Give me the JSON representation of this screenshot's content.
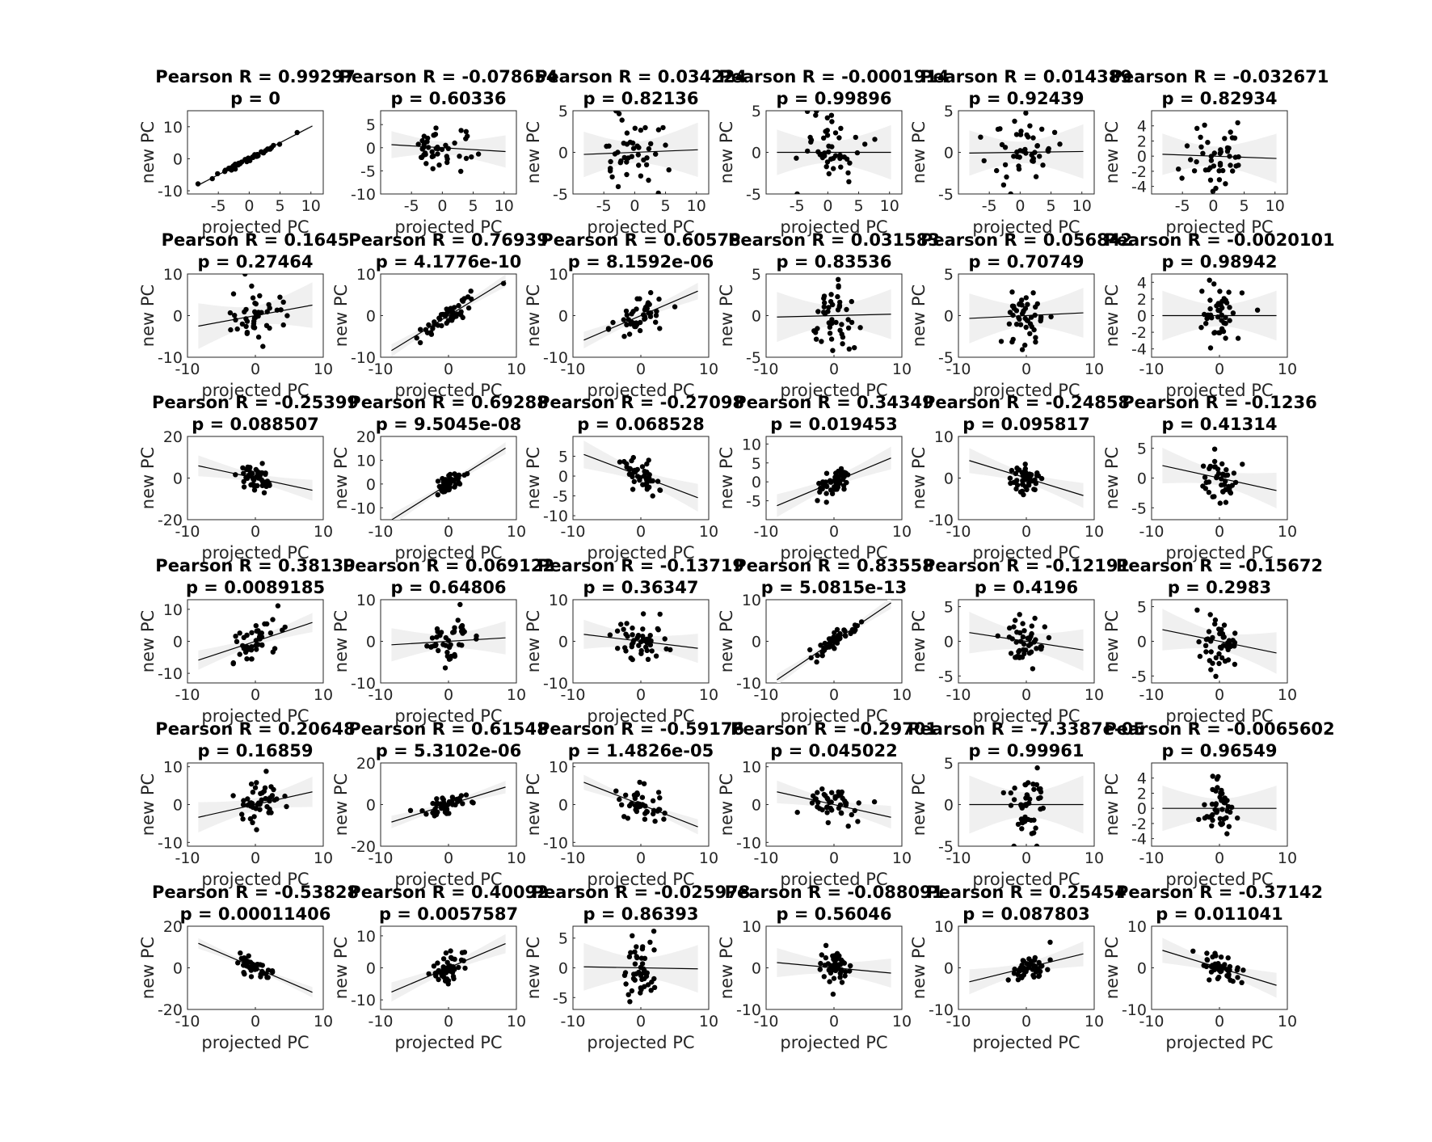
{
  "chart_data": [
    {
      "title": "Pearson R = 0.99297",
      "subtitle": "p = 0",
      "xlabel": "projected PC",
      "ylabel": "new PC",
      "xlim": [
        -10,
        12
      ],
      "ylim": [
        -11,
        15
      ],
      "xticks": [
        -5,
        0,
        5,
        10
      ],
      "yticks": [
        -10,
        0,
        10
      ],
      "slope": 1.0,
      "band_half": 0.5,
      "spread_x": 2.7,
      "noise": 0.4,
      "seed": 1
    },
    {
      "title": "Pearson R = -0.078654",
      "subtitle": "p = 0.60336",
      "xlabel": "projected PC",
      "ylabel": "",
      "xlim": [
        -10,
        12
      ],
      "ylim": [
        -10,
        8
      ],
      "xticks": [
        -5,
        0,
        5,
        10
      ],
      "yticks": [
        -10,
        -5,
        0,
        5
      ],
      "slope": -0.08,
      "band_half": 3.2,
      "spread_x": 2.7,
      "noise": 2.6,
      "seed": 2
    },
    {
      "title": "Pearson R = 0.034224",
      "subtitle": "p = 0.82136",
      "xlabel": "projected PC",
      "ylabel": "new PC",
      "xlim": [
        -10,
        12
      ],
      "ylim": [
        -5,
        5
      ],
      "xticks": [
        -5,
        0,
        5,
        10
      ],
      "yticks": [
        -5,
        0,
        5
      ],
      "slope": 0.03,
      "band_half": 3.0,
      "spread_x": 2.7,
      "noise": 2.3,
      "seed": 3
    },
    {
      "title": "Pearson R = -0.0001914",
      "subtitle": "p = 0.99896",
      "xlabel": "projected PC",
      "ylabel": "new PC",
      "xlim": [
        -10,
        12
      ],
      "ylim": [
        -5,
        5
      ],
      "xticks": [
        -5,
        0,
        5,
        10
      ],
      "yticks": [
        -5,
        0,
        5
      ],
      "slope": 0.0,
      "band_half": 3.0,
      "spread_x": 2.7,
      "noise": 2.3,
      "seed": 4
    },
    {
      "title": "Pearson R = 0.014389",
      "subtitle": "p = 0.92439",
      "xlabel": "projected PC",
      "ylabel": "new PC",
      "xlim": [
        -10,
        12
      ],
      "ylim": [
        -5,
        5
      ],
      "xticks": [
        -5,
        0,
        5,
        10
      ],
      "yticks": [
        -5,
        0,
        5
      ],
      "slope": 0.01,
      "band_half": 3.0,
      "spread_x": 2.7,
      "noise": 2.0,
      "seed": 5
    },
    {
      "title": "Pearson R = -0.032671",
      "subtitle": "p = 0.82934",
      "xlabel": "projected PC",
      "ylabel": "new PC",
      "xlim": [
        -10,
        12
      ],
      "ylim": [
        -5,
        6
      ],
      "xticks": [
        -5,
        0,
        5,
        10
      ],
      "yticks": [
        -4,
        -2,
        0,
        2,
        4
      ],
      "slope": -0.03,
      "band_half": 3.0,
      "spread_x": 2.7,
      "noise": 1.8,
      "seed": 6
    },
    {
      "title": "Pearson R = 0.1645",
      "subtitle": "p = 0.27464",
      "xlabel": "projected PC",
      "ylabel": "new PC",
      "xlim": [
        -10,
        10
      ],
      "ylim": [
        -10,
        10
      ],
      "xticks": [
        -10,
        0,
        10
      ],
      "yticks": [
        -10,
        0,
        10
      ],
      "slope": 0.3,
      "band_half": 5.5,
      "spread_x": 2.0,
      "noise": 3.0,
      "seed": 7
    },
    {
      "title": "Pearson R = 0.76939",
      "subtitle": "p = 4.1776e-10",
      "xlabel": "projected PC",
      "ylabel": "new PC",
      "xlim": [
        -10,
        10
      ],
      "ylim": [
        -10,
        10
      ],
      "xticks": [
        -10,
        0,
        10
      ],
      "yticks": [
        -10,
        0,
        10
      ],
      "slope": 1.0,
      "band_half": 1.5,
      "spread_x": 2.0,
      "noise": 1.3,
      "seed": 8
    },
    {
      "title": "Pearson R = 0.60578",
      "subtitle": "p = 8.1592e-06",
      "xlabel": "projected PC",
      "ylabel": "new PC",
      "xlim": [
        -10,
        10
      ],
      "ylim": [
        -10,
        10
      ],
      "xticks": [
        -10,
        0,
        10
      ],
      "yticks": [
        -10,
        0,
        10
      ],
      "slope": 0.7,
      "band_half": 2.0,
      "spread_x": 2.0,
      "noise": 1.8,
      "seed": 9
    },
    {
      "title": "Pearson R = 0.031583",
      "subtitle": "p = 0.83536",
      "xlabel": "projected PC",
      "ylabel": "new PC",
      "xlim": [
        -10,
        10
      ],
      "ylim": [
        -5,
        5
      ],
      "xticks": [
        -10,
        0,
        10
      ],
      "yticks": [
        -5,
        0,
        5
      ],
      "slope": 0.02,
      "band_half": 3.0,
      "spread_x": 1.6,
      "noise": 2.3,
      "seed": 10
    },
    {
      "title": "Pearson R = 0.056842",
      "subtitle": "p = 0.70749",
      "xlabel": "projected PC",
      "ylabel": "new PC",
      "xlim": [
        -10,
        10
      ],
      "ylim": [
        -5,
        5
      ],
      "xticks": [
        -10,
        0,
        10
      ],
      "yticks": [
        -5,
        0,
        5
      ],
      "slope": 0.04,
      "band_half": 3.0,
      "spread_x": 1.6,
      "noise": 2.0,
      "seed": 11
    },
    {
      "title": "Pearson R = -0.0020101",
      "subtitle": "p = 0.98942",
      "xlabel": "projected PC",
      "ylabel": "new PC",
      "xlim": [
        -10,
        10
      ],
      "ylim": [
        -5,
        5
      ],
      "xticks": [
        -10,
        0,
        10
      ],
      "yticks": [
        -4,
        -2,
        0,
        2,
        4
      ],
      "slope": 0.0,
      "band_half": 3.0,
      "spread_x": 1.6,
      "noise": 1.8,
      "seed": 12
    },
    {
      "title": "Pearson R = -0.25399",
      "subtitle": "p = 0.088507",
      "xlabel": "projected PC",
      "ylabel": "new PC",
      "xlim": [
        -10,
        10
      ],
      "ylim": [
        -20,
        20
      ],
      "xticks": [
        -10,
        0,
        10
      ],
      "yticks": [
        -20,
        0,
        20
      ],
      "slope": -0.7,
      "band_half": 5.0,
      "spread_x": 1.3,
      "noise": 3.0,
      "seed": 13
    },
    {
      "title": "Pearson R = 0.69288",
      "subtitle": "p = 9.5045e-08",
      "xlabel": "projected PC",
      "ylabel": "new PC",
      "xlim": [
        -10,
        10
      ],
      "ylim": [
        -15,
        20
      ],
      "xticks": [
        -10,
        0,
        10
      ],
      "yticks": [
        -10,
        0,
        10,
        20
      ],
      "slope": 1.8,
      "band_half": 2.5,
      "spread_x": 1.3,
      "noise": 1.8,
      "seed": 14
    },
    {
      "title": "Pearson R = -0.27098",
      "subtitle": "p = 0.068528",
      "xlabel": "projected PC",
      "ylabel": "new PC",
      "xlim": [
        -10,
        10
      ],
      "ylim": [
        -11,
        10
      ],
      "xticks": [
        -10,
        0,
        10
      ],
      "yticks": [
        -10,
        -5,
        0,
        5
      ],
      "slope": -0.65,
      "band_half": 3.5,
      "spread_x": 1.3,
      "noise": 2.0,
      "seed": 15
    },
    {
      "title": "Pearson R = 0.34349",
      "subtitle": "p = 0.019453",
      "xlabel": "projected PC",
      "ylabel": "new PC",
      "xlim": [
        -10,
        10
      ],
      "ylim": [
        -10,
        12
      ],
      "xticks": [
        -10,
        0,
        10
      ],
      "yticks": [
        -5,
        0,
        5,
        10
      ],
      "slope": 0.75,
      "band_half": 3.0,
      "spread_x": 1.3,
      "noise": 2.0,
      "seed": 16
    },
    {
      "title": "Pearson R = -0.24858",
      "subtitle": "p = 0.095817",
      "xlabel": "projected PC",
      "ylabel": "new PC",
      "xlim": [
        -10,
        10
      ],
      "ylim": [
        -10,
        10
      ],
      "xticks": [
        -10,
        0,
        10
      ],
      "yticks": [
        -10,
        0,
        10
      ],
      "slope": -0.5,
      "band_half": 3.0,
      "spread_x": 1.3,
      "noise": 1.8,
      "seed": 17
    },
    {
      "title": "Pearson R = -0.1236",
      "subtitle": "p = 0.41314",
      "xlabel": "projected PC",
      "ylabel": "new PC",
      "xlim": [
        -10,
        10
      ],
      "ylim": [
        -7,
        7
      ],
      "xticks": [
        -10,
        0,
        10
      ],
      "yticks": [
        -5,
        0,
        5
      ],
      "slope": -0.25,
      "band_half": 3.0,
      "spread_x": 1.3,
      "noise": 1.8,
      "seed": 18
    },
    {
      "title": "Pearson R = 0.38139",
      "subtitle": "p = 0.0089185",
      "xlabel": "projected PC",
      "ylabel": "new PC",
      "xlim": [
        -10,
        10
      ],
      "ylim": [
        -13,
        13
      ],
      "xticks": [
        -10,
        0,
        10
      ],
      "yticks": [
        -10,
        0,
        10
      ],
      "slope": 0.7,
      "band_half": 3.0,
      "spread_x": 2.0,
      "noise": 3.0,
      "seed": 19
    },
    {
      "title": "Pearson R = 0.069122",
      "subtitle": "p = 0.64806",
      "xlabel": "projected PC",
      "ylabel": "new PC",
      "xlim": [
        -10,
        10
      ],
      "ylim": [
        -10,
        10
      ],
      "xticks": [
        -10,
        0,
        10
      ],
      "yticks": [
        -10,
        0,
        10
      ],
      "slope": 0.1,
      "band_half": 4.0,
      "spread_x": 1.6,
      "noise": 2.8,
      "seed": 20
    },
    {
      "title": "Pearson R = -0.13719",
      "subtitle": "p = 0.36347",
      "xlabel": "projected PC",
      "ylabel": "new PC",
      "xlim": [
        -10,
        10
      ],
      "ylim": [
        -10,
        10
      ],
      "xticks": [
        -10,
        0,
        10
      ],
      "yticks": [
        -10,
        0,
        10
      ],
      "slope": -0.2,
      "band_half": 3.5,
      "spread_x": 1.8,
      "noise": 2.5,
      "seed": 21
    },
    {
      "title": "Pearson R = 0.83558",
      "subtitle": "p = 5.0815e-13",
      "xlabel": "projected PC",
      "ylabel": "new PC",
      "xlim": [
        -10,
        10
      ],
      "ylim": [
        -10,
        10
      ],
      "xticks": [
        -10,
        0,
        10
      ],
      "yticks": [
        -10,
        0,
        10
      ],
      "slope": 1.1,
      "band_half": 1.4,
      "spread_x": 2.0,
      "noise": 1.0,
      "seed": 22
    },
    {
      "title": "Pearson R = -0.12191",
      "subtitle": "p = 0.4196",
      "xlabel": "projected PC",
      "ylabel": "new PC",
      "xlim": [
        -10,
        10
      ],
      "ylim": [
        -6,
        6
      ],
      "xticks": [
        -10,
        0,
        10
      ],
      "yticks": [
        -5,
        0,
        5
      ],
      "slope": -0.15,
      "band_half": 3.0,
      "spread_x": 1.6,
      "noise": 2.0,
      "seed": 23
    },
    {
      "title": "Pearson R = -0.15672",
      "subtitle": "p = 0.2983",
      "xlabel": "projected PC",
      "ylabel": "new PC",
      "xlim": [
        -10,
        10
      ],
      "ylim": [
        -6,
        6
      ],
      "xticks": [
        -10,
        0,
        10
      ],
      "yticks": [
        -5,
        0,
        5
      ],
      "slope": -0.2,
      "band_half": 3.0,
      "spread_x": 1.6,
      "noise": 2.0,
      "seed": 24
    },
    {
      "title": "Pearson R = 0.20648",
      "subtitle": "p = 0.16859",
      "xlabel": "projected PC",
      "ylabel": "new PC",
      "xlim": [
        -10,
        10
      ],
      "ylim": [
        -11,
        11
      ],
      "xticks": [
        -10,
        0,
        10
      ],
      "yticks": [
        -10,
        0,
        10
      ],
      "slope": 0.4,
      "band_half": 4.0,
      "spread_x": 1.6,
      "noise": 3.0,
      "seed": 25
    },
    {
      "title": "Pearson R = 0.61548",
      "subtitle": "p = 5.3102e-06",
      "xlabel": "projected PC",
      "ylabel": "new PC",
      "xlim": [
        -10,
        10
      ],
      "ylim": [
        -20,
        20
      ],
      "xticks": [
        -10,
        0,
        10
      ],
      "yticks": [
        -20,
        0,
        20
      ],
      "slope": 1.0,
      "band_half": 3.0,
      "spread_x": 1.8,
      "noise": 2.5,
      "seed": 26
    },
    {
      "title": "Pearson R = -0.59176",
      "subtitle": "p = 1.4826e-05",
      "xlabel": "projected PC",
      "ylabel": "new PC",
      "xlim": [
        -10,
        10
      ],
      "ylim": [
        -11,
        11
      ],
      "xticks": [
        -10,
        0,
        10
      ],
      "yticks": [
        -10,
        0,
        10
      ],
      "slope": -0.7,
      "band_half": 2.0,
      "spread_x": 2.0,
      "noise": 1.8,
      "seed": 27
    },
    {
      "title": "Pearson R = -0.29701",
      "subtitle": "p = 0.045022",
      "xlabel": "projected PC",
      "ylabel": "new PC",
      "xlim": [
        -10,
        10
      ],
      "ylim": [
        -11,
        11
      ],
      "xticks": [
        -10,
        0,
        10
      ],
      "yticks": [
        -10,
        0,
        10
      ],
      "slope": -0.4,
      "band_half": 3.0,
      "spread_x": 1.8,
      "noise": 2.3,
      "seed": 28
    },
    {
      "title": "Pearson R = -7.3387e-05",
      "subtitle": "p = 0.99961",
      "xlabel": "projected PC",
      "ylabel": "new PC",
      "xlim": [
        -10,
        10
      ],
      "ylim": [
        -5,
        5
      ],
      "xticks": [
        -10,
        0,
        10
      ],
      "yticks": [
        -5,
        0,
        5
      ],
      "slope": 0.0,
      "band_half": 3.5,
      "spread_x": 1.3,
      "noise": 2.0,
      "seed": 29
    },
    {
      "title": "Pearson R = -0.0065602",
      "subtitle": "p = 0.96549",
      "xlabel": "projected PC",
      "ylabel": "new PC",
      "xlim": [
        -10,
        10
      ],
      "ylim": [
        -5,
        6
      ],
      "xticks": [
        -10,
        0,
        10
      ],
      "yticks": [
        -4,
        -2,
        0,
        2,
        4
      ],
      "slope": 0.0,
      "band_half": 3.0,
      "spread_x": 1.3,
      "noise": 1.8,
      "seed": 30
    },
    {
      "title": "Pearson R = -0.53828",
      "subtitle": "p = 0.00011406",
      "xlabel": "projected PC",
      "ylabel": "new PC",
      "xlim": [
        -10,
        10
      ],
      "ylim": [
        -20,
        20
      ],
      "xticks": [
        -10,
        0,
        10
      ],
      "yticks": [
        -20,
        0,
        20
      ],
      "slope": -1.4,
      "band_half": 2.5,
      "spread_x": 1.3,
      "noise": 2.0,
      "seed": 31
    },
    {
      "title": "Pearson R = 0.40092",
      "subtitle": "p = 0.0057587",
      "xlabel": "projected PC",
      "ylabel": "new PC",
      "xlim": [
        -10,
        10
      ],
      "ylim": [
        -13,
        13
      ],
      "xticks": [
        -10,
        0,
        10
      ],
      "yticks": [
        -10,
        0,
        10
      ],
      "slope": 0.9,
      "band_half": 3.0,
      "spread_x": 1.3,
      "noise": 2.2,
      "seed": 32
    },
    {
      "title": "Pearson R = -0.025978",
      "subtitle": "p = 0.86393",
      "xlabel": "projected PC",
      "ylabel": "new PC",
      "xlim": [
        -10,
        10
      ],
      "ylim": [
        -7,
        7
      ],
      "xticks": [
        -10,
        0,
        10
      ],
      "yticks": [
        -5,
        0,
        5
      ],
      "slope": -0.02,
      "band_half": 4.0,
      "spread_x": 1.3,
      "noise": 2.5,
      "seed": 33
    },
    {
      "title": "Pearson R = -0.088091",
      "subtitle": "p = 0.56046",
      "xlabel": "projected PC",
      "ylabel": "new PC",
      "xlim": [
        -10,
        10
      ],
      "ylim": [
        -10,
        10
      ],
      "xticks": [
        -10,
        0,
        10
      ],
      "yticks": [
        -10,
        0,
        10
      ],
      "slope": -0.15,
      "band_half": 3.5,
      "spread_x": 1.3,
      "noise": 2.2,
      "seed": 34
    },
    {
      "title": "Pearson R = 0.25454",
      "subtitle": "p = 0.087803",
      "xlabel": "projected PC",
      "ylabel": "new PC",
      "xlim": [
        -10,
        10
      ],
      "ylim": [
        -10,
        10
      ],
      "xticks": [
        -10,
        0,
        10
      ],
      "yticks": [
        -10,
        0,
        10
      ],
      "slope": 0.4,
      "band_half": 3.0,
      "spread_x": 1.6,
      "noise": 2.0,
      "seed": 35
    },
    {
      "title": "Pearson R = -0.37142",
      "subtitle": "p = 0.011041",
      "xlabel": "projected PC",
      "ylabel": "new PC",
      "xlim": [
        -10,
        10
      ],
      "ylim": [
        -10,
        10
      ],
      "xticks": [
        -10,
        0,
        10
      ],
      "yticks": [
        -10,
        0,
        10
      ],
      "slope": -0.5,
      "band_half": 3.0,
      "spread_x": 1.6,
      "noise": 1.8,
      "seed": 36
    }
  ]
}
